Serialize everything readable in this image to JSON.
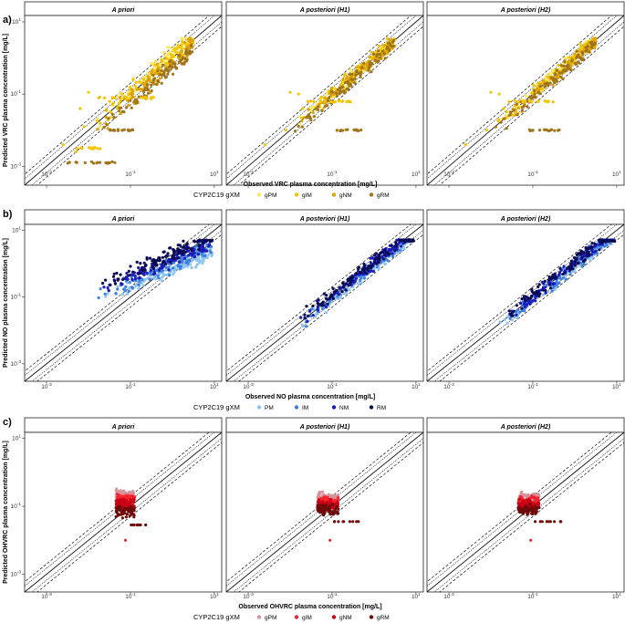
{
  "figure": {
    "superscript_ticks": [
      "-3",
      "-1",
      "1"
    ],
    "panel_titles": [
      "A priori",
      "A posteriori (H1)",
      "A posteriori (H2)"
    ]
  },
  "colors": {
    "rows": [
      [
        "#ffe65c",
        "#f2c500",
        "#dca30a",
        "#a0741a"
      ],
      [
        "#8ec4f2",
        "#3f7fe0",
        "#1b1bb8",
        "#0a0a55"
      ],
      [
        "#d8929a",
        "#f3242e",
        "#c80015",
        "#6e0b0b"
      ]
    ]
  },
  "chart_data": [
    {
      "type": "scatter",
      "panel_label": "a)",
      "title": "",
      "xlabel": "Observed VRC plasma concentration [mg/L]",
      "ylabel": "Predicted VRC plasma concentration [mg/L]",
      "scale": "log10",
      "xlim": [
        0.0003,
        15
      ],
      "ylim": [
        0.0003,
        15
      ],
      "xticks": [
        "10-3",
        "10-1",
        "101"
      ],
      "yticks": [
        "10-3",
        "10-1",
        "101"
      ],
      "reference_lines": [
        "identity (solid)",
        "dotted band",
        "dashed band"
      ],
      "facets": [
        "A priori",
        "A posteriori (H1)",
        "A posteriori (H2)"
      ],
      "legend": {
        "title": "CYP2C19 gXM",
        "placement": "bottom",
        "entries": [
          "gPM",
          "gIM",
          "gNM",
          "gRM"
        ]
      }
    },
    {
      "type": "scatter",
      "panel_label": "b)",
      "title": "",
      "xlabel": "Observed NO plasma concentration [mg/L]",
      "ylabel": "Predicted NO plasma concentration [mg/L]",
      "scale": "log10",
      "xlim": [
        0.0003,
        15
      ],
      "ylim": [
        0.0003,
        15
      ],
      "xticks": [
        "10-3",
        "10-1",
        "101"
      ],
      "yticks": [
        "10-3",
        "10-1",
        "101"
      ],
      "reference_lines": [
        "identity (solid)",
        "dotted band",
        "dashed band"
      ],
      "facets": [
        "A priori",
        "A posteriori (H1)",
        "A posteriori (H2)"
      ],
      "legend": {
        "title": "CYP2C19 gXM",
        "placement": "bottom",
        "entries": [
          "PM",
          "IM",
          "NM",
          "RM"
        ]
      }
    },
    {
      "type": "scatter",
      "panel_label": "c)",
      "title": "",
      "xlabel": "Observed OHVRC plasma concentration [mg/L]",
      "ylabel": "Predicted OHVRC plasma concentration [mg/L]",
      "scale": "log10",
      "xlim": [
        0.0003,
        15
      ],
      "ylim": [
        0.0003,
        15
      ],
      "xticks": [
        "10-3",
        "10-1",
        "101"
      ],
      "yticks": [
        "10-3",
        "10-1",
        "101"
      ],
      "reference_lines": [
        "identity (solid)",
        "dotted band",
        "dashed band"
      ],
      "facets": [
        "A priori",
        "A posteriori (H1)",
        "A posteriori (H2)"
      ],
      "legend": {
        "title": "CYP2C19 gXM",
        "placement": "bottom",
        "entries": [
          "gPM",
          "gIM",
          "gNM",
          "gRM"
        ]
      }
    }
  ]
}
